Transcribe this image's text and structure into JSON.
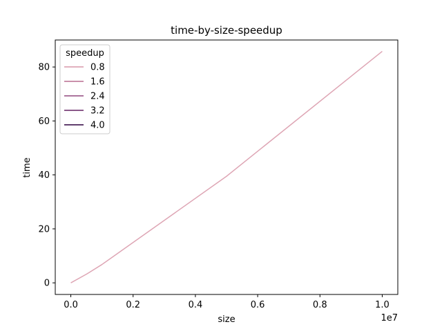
{
  "chart_data": {
    "type": "line",
    "title": "time-by-size-speedup",
    "xlabel": "size",
    "ylabel": "time",
    "x_offset_label": "1e7",
    "xlim": [
      -0.05,
      1.05
    ],
    "ylim": [
      -4.3,
      90.0
    ],
    "x_ticks": [
      0.0,
      0.2,
      0.4,
      0.6,
      0.8,
      1.0
    ],
    "x_tick_labels": [
      "0.0",
      "0.2",
      "0.4",
      "0.6",
      "0.8",
      "1.0"
    ],
    "y_ticks": [
      0,
      20,
      40,
      60,
      80
    ],
    "y_tick_labels": [
      "0",
      "20",
      "40",
      "60",
      "80"
    ],
    "grid": false,
    "legend": {
      "title": "speedup",
      "placement": "top-left",
      "entries": [
        {
          "label": "0.8",
          "color": "#dea5b4"
        },
        {
          "label": "1.6",
          "color": "#c2809f"
        },
        {
          "label": "2.4",
          "color": "#a1608f"
        },
        {
          "label": "3.2",
          "color": "#7a4078"
        },
        {
          "label": "4.0",
          "color": "#4a2358"
        }
      ]
    },
    "series": [
      {
        "legend_label": "0.8",
        "color": "#dea5b4",
        "x": [
          0.0,
          0.05,
          0.1,
          0.5,
          1.0
        ],
        "y": [
          0.0,
          3.2,
          6.8,
          39.5,
          85.8
        ]
      }
    ]
  }
}
